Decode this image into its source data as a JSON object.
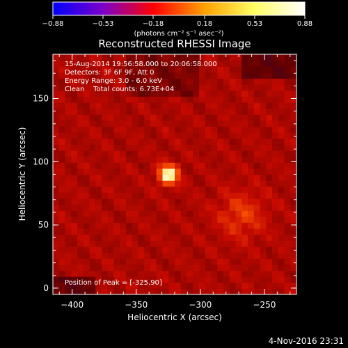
{
  "chart_data": {
    "type": "heatmap",
    "title": "Reconstructed RHESSI Image",
    "xlabel": "Heliocentric X (arcsec)",
    "ylabel": "Heliocentric Y (arcsec)",
    "xlim": [
      -415,
      -225
    ],
    "ylim": [
      -5,
      185
    ],
    "xticks": [
      -400,
      -350,
      -300,
      -250
    ],
    "yticks": [
      0,
      50,
      100,
      150
    ],
    "colorbar": {
      "ticks": [
        -0.88,
        -0.53,
        -0.18,
        0.18,
        0.53,
        0.88
      ],
      "range": [
        -0.88,
        0.88
      ],
      "unit_label": "(photons cm⁻² s⁻¹ asec⁻²)",
      "colormap": [
        "#0000ff",
        "#7d00c8",
        "#ff0000",
        "#ffa000",
        "#ffff64",
        "#ffffff"
      ]
    },
    "annotations": {
      "time_range": "15-Aug-2014 19:56:58.000 to 20:06:58.000",
      "detectors": "Detectors: 3F 6F 9F, Att 0",
      "energy_range": "Energy Range: 3.0 - 6.0 keV",
      "method": "Clean    Total counts: 6.73E+04",
      "peak": "Position of Peak = [-325,90]"
    },
    "peak": {
      "x": -325,
      "y": 90,
      "value": 0.88
    },
    "secondary_source": {
      "x": -268,
      "y": 58
    },
    "grid": false
  },
  "footer": {
    "timestamp": "4-Nov-2016 23:31"
  }
}
